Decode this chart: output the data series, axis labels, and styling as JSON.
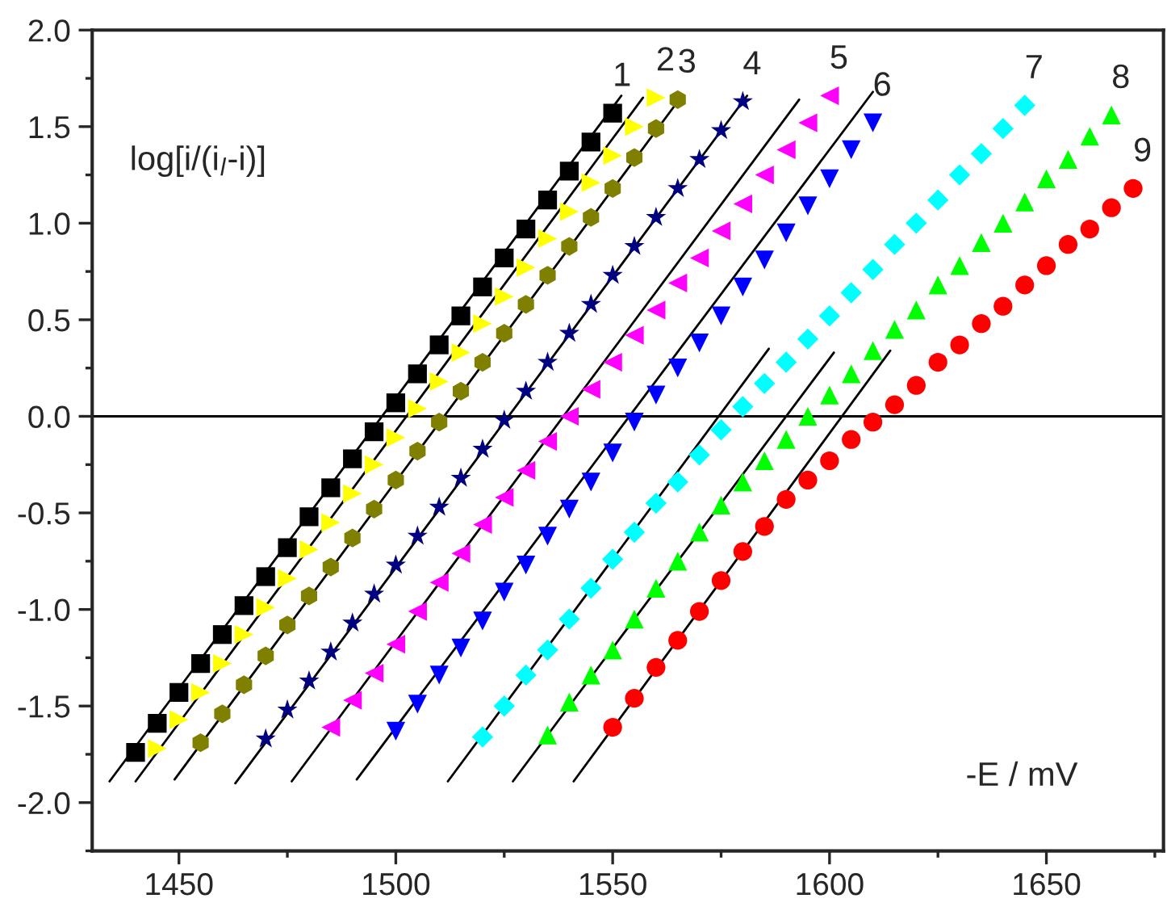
{
  "chart_data": {
    "type": "scatter",
    "xlabel": "-E / mV",
    "ylabel": "log[i/(i$_{l}$-i)]",
    "xlim": [
      1430,
      1677
    ],
    "ylim": [
      -2.25,
      2.0
    ],
    "xticks": [
      1450,
      1500,
      1550,
      1600,
      1650
    ],
    "yticks": [
      {
        "value": -2.0,
        "label": "-2.0"
      },
      {
        "value": -1.5,
        "label": "-1.5"
      },
      {
        "value": -1.0,
        "label": "-1.0"
      },
      {
        "value": -0.5,
        "label": "-0.5"
      },
      {
        "value": 0.0,
        "label": "0.0"
      },
      {
        "value": 0.5,
        "label": "0.5"
      },
      {
        "value": 1.0,
        "label": "1.0"
      },
      {
        "value": 1.5,
        "label": "1.5"
      },
      {
        "value": 2.0,
        "label": "2.0"
      }
    ],
    "grid": false,
    "ref_lines": [
      {
        "axis": "y",
        "value": 0,
        "color": "#000000"
      }
    ],
    "series": [
      {
        "name": "1",
        "marker": "square",
        "color": "#000000",
        "x": [
          1440,
          1445,
          1450,
          1455,
          1460,
          1465,
          1470,
          1475,
          1480,
          1485,
          1490,
          1495,
          1500,
          1505,
          1510,
          1515,
          1520,
          1525,
          1530,
          1535,
          1540,
          1545,
          1550
        ],
        "values": [
          -1.74,
          -1.59,
          -1.43,
          -1.28,
          -1.13,
          -0.98,
          -0.83,
          -0.68,
          -0.52,
          -0.37,
          -0.22,
          -0.08,
          0.07,
          0.22,
          0.37,
          0.52,
          0.67,
          0.82,
          0.97,
          1.12,
          1.27,
          1.42,
          1.57
        ]
      },
      {
        "name": "2",
        "marker": "triangle-right",
        "color": "#ffff00",
        "x": [
          1445,
          1450,
          1455,
          1460,
          1465,
          1470,
          1475,
          1480,
          1485,
          1490,
          1495,
          1500,
          1505,
          1510,
          1515,
          1520,
          1525,
          1530,
          1535,
          1540,
          1545,
          1550,
          1555,
          1560
        ],
        "values": [
          -1.72,
          -1.57,
          -1.43,
          -1.28,
          -1.13,
          -0.99,
          -0.84,
          -0.69,
          -0.55,
          -0.4,
          -0.25,
          -0.11,
          0.04,
          0.18,
          0.33,
          0.48,
          0.62,
          0.77,
          0.92,
          1.06,
          1.21,
          1.35,
          1.5,
          1.65
        ]
      },
      {
        "name": "3",
        "color": "#808000",
        "x": [
          1455,
          1460,
          1465,
          1470,
          1475,
          1480,
          1485,
          1490,
          1495,
          1500,
          1505,
          1510,
          1515,
          1520,
          1525,
          1530,
          1535,
          1540,
          1545,
          1550,
          1555,
          1560,
          1565
        ],
        "values": [
          -1.69,
          -1.54,
          -1.39,
          -1.24,
          -1.08,
          -0.93,
          -0.78,
          -0.63,
          -0.48,
          -0.33,
          -0.18,
          -0.03,
          0.13,
          0.28,
          0.43,
          0.58,
          0.73,
          0.88,
          1.03,
          1.18,
          1.34,
          1.49,
          1.64
        ]
      },
      {
        "name": "4",
        "marker": "star",
        "color": "#000080",
        "x": [
          1470,
          1475,
          1480,
          1485,
          1490,
          1495,
          1500,
          1505,
          1510,
          1515,
          1520,
          1525,
          1530,
          1535,
          1540,
          1545,
          1550,
          1555,
          1560,
          1565,
          1570,
          1575,
          1580
        ],
        "values": [
          -1.67,
          -1.52,
          -1.37,
          -1.22,
          -1.07,
          -0.92,
          -0.77,
          -0.62,
          -0.47,
          -0.32,
          -0.17,
          -0.02,
          0.13,
          0.28,
          0.43,
          0.58,
          0.73,
          0.88,
          1.03,
          1.18,
          1.33,
          1.48,
          1.63
        ]
      },
      {
        "name": "5",
        "marker": "triangle-left",
        "color": "#ff00ff",
        "x": [
          1485,
          1490,
          1495,
          1500,
          1505,
          1510,
          1515,
          1520,
          1525,
          1530,
          1535,
          1540,
          1545,
          1550,
          1555,
          1560,
          1565,
          1570,
          1575,
          1580,
          1585,
          1590,
          1595,
          1600
        ],
        "values": [
          -1.61,
          -1.47,
          -1.33,
          -1.18,
          -1.01,
          -0.86,
          -0.71,
          -0.56,
          -0.42,
          -0.28,
          -0.13,
          0.0,
          0.14,
          0.28,
          0.42,
          0.55,
          0.69,
          0.82,
          0.96,
          1.1,
          1.25,
          1.38,
          1.52,
          1.66
        ]
      },
      {
        "name": "6",
        "marker": "triangle-down",
        "color": "#0000ff",
        "x": [
          1500,
          1505,
          1510,
          1515,
          1520,
          1525,
          1530,
          1535,
          1540,
          1545,
          1550,
          1555,
          1560,
          1565,
          1570,
          1575,
          1580,
          1585,
          1590,
          1595,
          1600,
          1605,
          1610
        ],
        "values": [
          -1.63,
          -1.49,
          -1.34,
          -1.2,
          -1.06,
          -0.91,
          -0.77,
          -0.62,
          -0.48,
          -0.34,
          -0.19,
          -0.03,
          0.11,
          0.25,
          0.38,
          0.52,
          0.67,
          0.81,
          0.95,
          1.09,
          1.23,
          1.38,
          1.52
        ]
      },
      {
        "name": "7",
        "marker": "diamond",
        "color": "#00ffff",
        "x": [
          1520,
          1525,
          1530,
          1535,
          1540,
          1545,
          1550,
          1555,
          1560,
          1565,
          1570,
          1575,
          1580,
          1585,
          1590,
          1595,
          1600,
          1605,
          1610,
          1615,
          1620,
          1625,
          1630,
          1635,
          1640,
          1645
        ],
        "values": [
          -1.66,
          -1.5,
          -1.34,
          -1.21,
          -1.05,
          -0.89,
          -0.74,
          -0.6,
          -0.45,
          -0.34,
          -0.2,
          -0.07,
          0.05,
          0.17,
          0.28,
          0.4,
          0.52,
          0.64,
          0.76,
          0.89,
          1.0,
          1.12,
          1.25,
          1.36,
          1.49,
          1.61
        ]
      },
      {
        "name": "8",
        "marker": "triangle-up",
        "color": "#00ff00",
        "x": [
          1535,
          1540,
          1545,
          1550,
          1555,
          1560,
          1565,
          1570,
          1575,
          1580,
          1585,
          1590,
          1595,
          1600,
          1605,
          1610,
          1615,
          1620,
          1625,
          1630,
          1635,
          1640,
          1645,
          1650,
          1655,
          1660,
          1665
        ],
        "values": [
          -1.65,
          -1.48,
          -1.34,
          -1.21,
          -1.05,
          -0.89,
          -0.75,
          -0.6,
          -0.46,
          -0.34,
          -0.23,
          -0.12,
          0.0,
          0.11,
          0.22,
          0.34,
          0.45,
          0.55,
          0.68,
          0.78,
          0.9,
          1.0,
          1.11,
          1.23,
          1.33,
          1.45,
          1.56
        ]
      },
      {
        "name": "9",
        "marker": "circle",
        "color": "#ff0000",
        "x": [
          1550,
          1555,
          1560,
          1565,
          1570,
          1575,
          1580,
          1585,
          1590,
          1595,
          1600,
          1605,
          1610,
          1615,
          1620,
          1625,
          1630,
          1635,
          1640,
          1645,
          1650,
          1655,
          1660,
          1665,
          1670
        ],
        "values": [
          -1.61,
          -1.46,
          -1.3,
          -1.16,
          -1.01,
          -0.85,
          -0.7,
          -0.57,
          -0.43,
          -0.33,
          -0.23,
          -0.12,
          -0.03,
          0.06,
          0.16,
          0.28,
          0.37,
          0.48,
          0.57,
          0.68,
          0.78,
          0.89,
          0.97,
          1.08,
          1.18
        ]
      },
      {
        "type": "line",
        "color": "#000000",
        "x": [
          1434,
          1552
        ],
        "values": [
          -1.89,
          1.66
        ]
      },
      {
        "type": "line",
        "color": "#000000",
        "x": [
          1440,
          1557
        ],
        "values": [
          -1.89,
          1.65
        ]
      },
      {
        "type": "line",
        "color": "#000000",
        "x": [
          1449,
          1566
        ],
        "values": [
          -1.88,
          1.66
        ]
      },
      {
        "type": "line",
        "color": "#000000",
        "x": [
          1463,
          1581
        ],
        "values": [
          -1.9,
          1.66
        ]
      },
      {
        "type": "line",
        "color": "#000000",
        "x": [
          1476,
          1593
        ],
        "values": [
          -1.89,
          1.64
        ]
      },
      {
        "type": "line",
        "color": "#000000",
        "x": [
          1491,
          1610
        ],
        "values": [
          -1.88,
          1.68
        ]
      },
      {
        "type": "line",
        "color": "#000000",
        "x": [
          1512,
          1586
        ],
        "values": [
          -1.89,
          0.35
        ]
      },
      {
        "type": "line",
        "color": "#000000",
        "x": [
          1527,
          1601
        ],
        "values": [
          -1.89,
          0.33
        ]
      },
      {
        "type": "line",
        "color": "#000000",
        "x": [
          1541,
          1614
        ],
        "values": [
          -1.89,
          0.34
        ]
      }
    ]
  }
}
